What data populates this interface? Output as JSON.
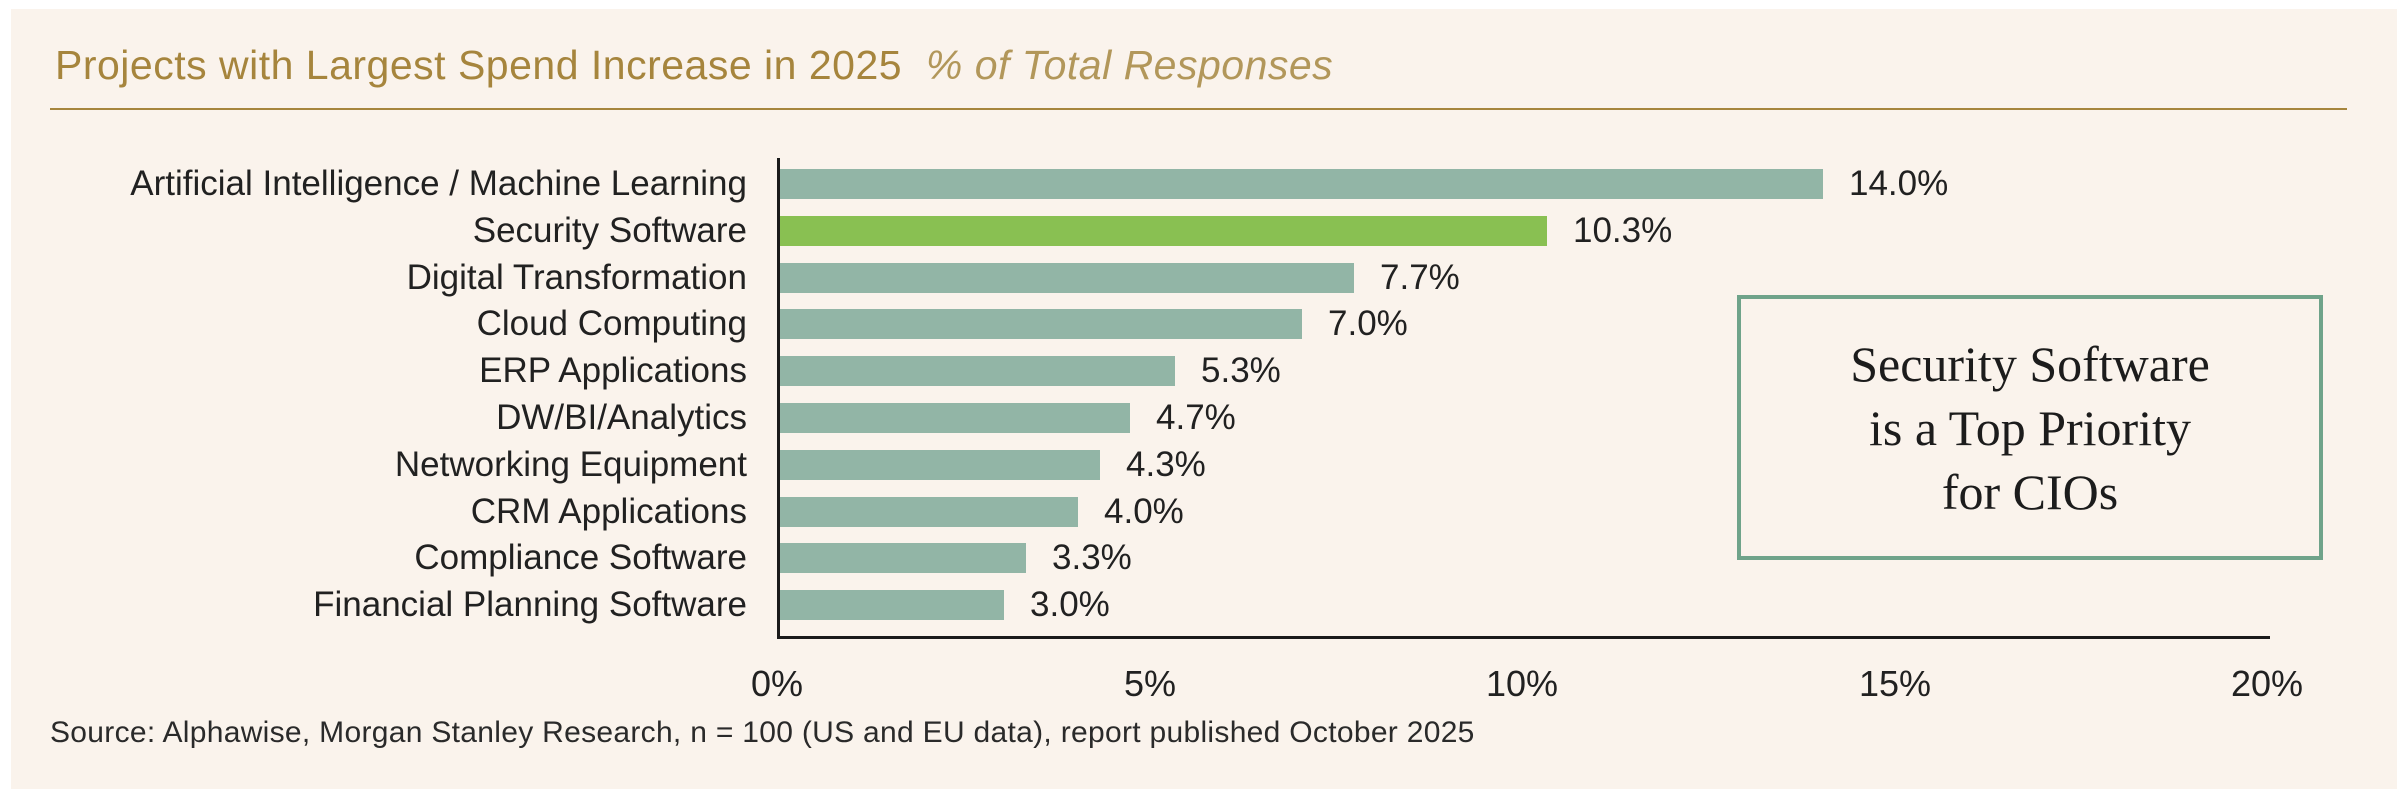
{
  "header": {
    "title": "Projects with Largest Spend Increase in 2025",
    "subtitle": "% of Total Responses"
  },
  "callout": {
    "text": "Security Software\nis a Top Priority\nfor CIOs"
  },
  "footer": {
    "source": "Source: Alphawise, Morgan Stanley Research, n = 100 (US and EU data), report published October 2025"
  },
  "colors": {
    "background": "#ffffff",
    "panel": "#faf3ec",
    "gold": "#a6853d",
    "subtitle_gold": "#b2975a",
    "bar": "#92b5a6",
    "bar_highlight": "#89c052",
    "callout_border": "#6fa38a",
    "text": "#212121",
    "axis": "#1a1a1a"
  },
  "chart_data": {
    "type": "bar",
    "orientation": "horizontal",
    "title": "Projects with Largest Spend Increase in 2025",
    "subtitle": "% of Total Responses",
    "categories": [
      "Artificial Intelligence / Machine Learning",
      "Security Software",
      "Digital Transformation",
      "Cloud Computing",
      "ERP Applications",
      "DW/BI/Analytics",
      "Networking Equipment",
      "CRM Applications",
      "Compliance Software",
      "Financial Planning Software"
    ],
    "values": [
      14.0,
      10.3,
      7.7,
      7.0,
      5.3,
      4.7,
      4.3,
      4.0,
      3.3,
      3.0
    ],
    "value_labels": [
      "14.0%",
      "10.3%",
      "7.7%",
      "7.0%",
      "5.3%",
      "4.7%",
      "4.3%",
      "4.0%",
      "3.3%",
      "3.0%"
    ],
    "highlight_index": 1,
    "highlight_category": "Security Software",
    "xlabel": "",
    "ylabel": "",
    "xlim": [
      0,
      20
    ],
    "xtick_labels": [
      "0%",
      "5%",
      "10%",
      "15%",
      "20%"
    ],
    "xtick_values": [
      0,
      5,
      10,
      15,
      20
    ],
    "grid": false,
    "legend": false
  }
}
